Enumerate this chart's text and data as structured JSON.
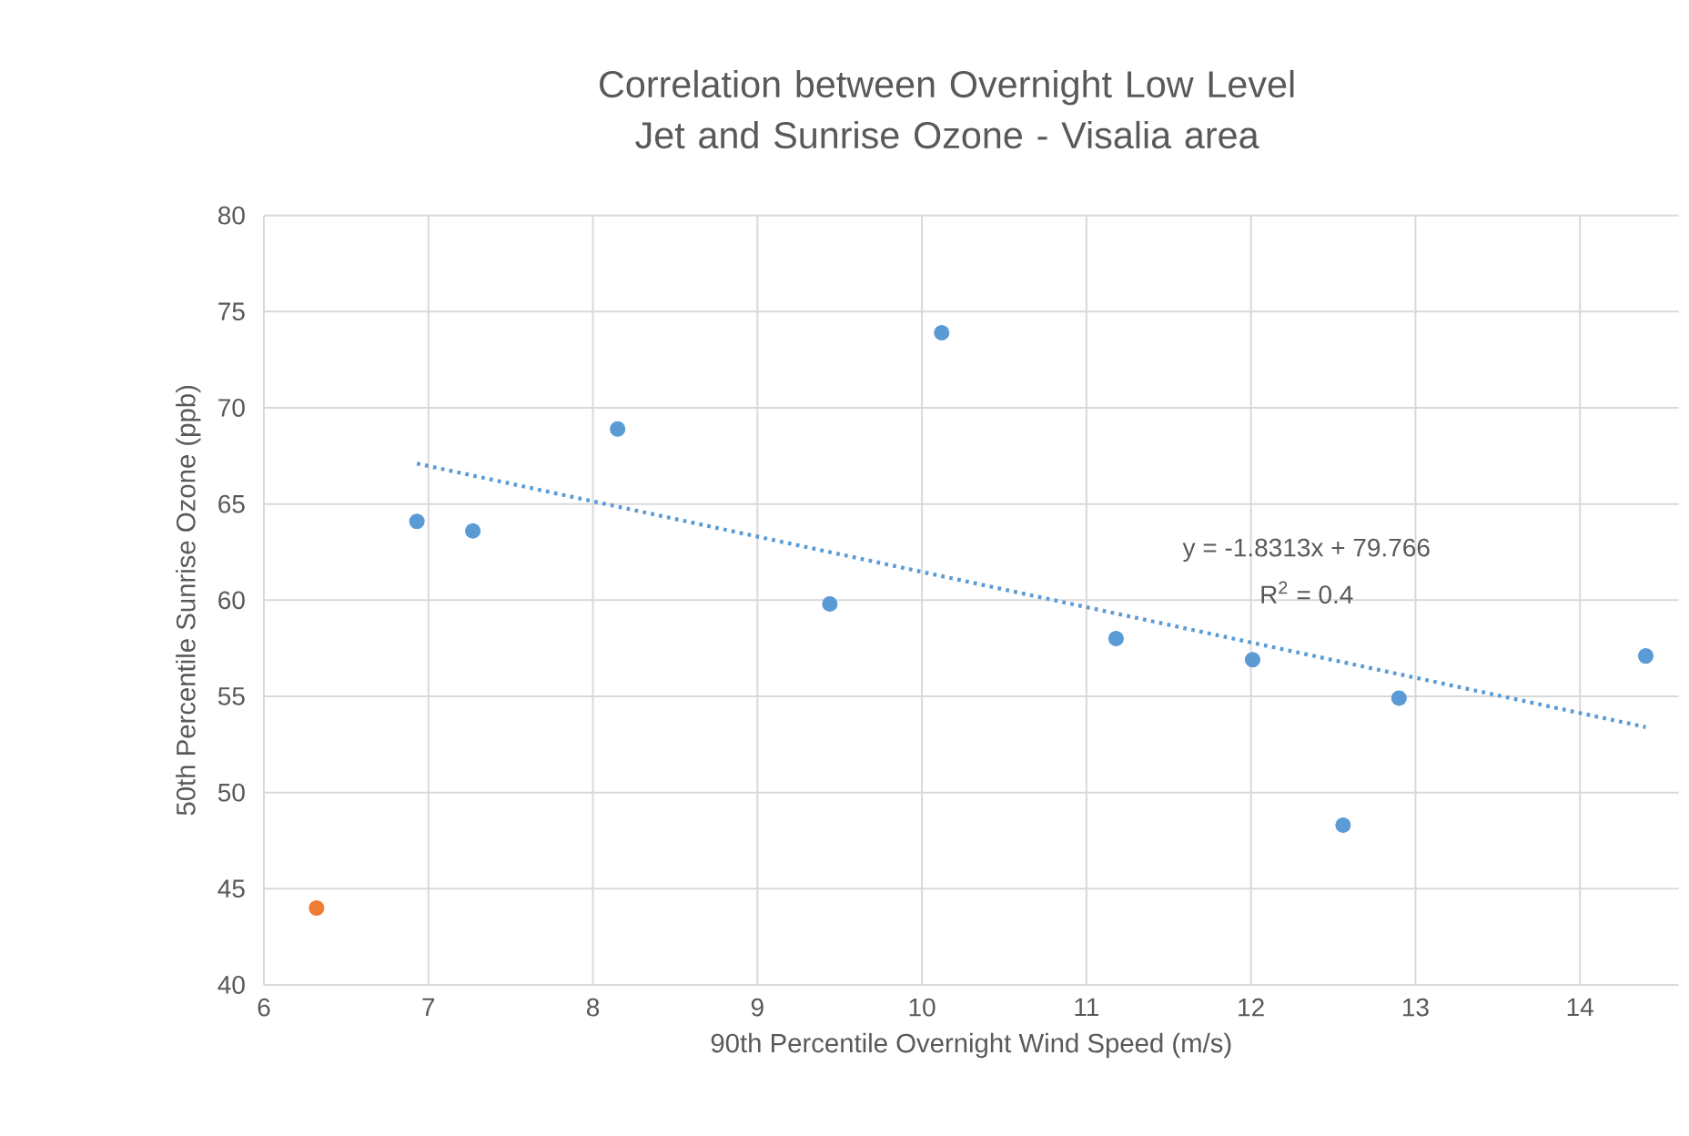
{
  "chart_data": {
    "type": "scatter",
    "title": "Correlation between Overnight Low Level Jet and Sunrise Ozone - Visalia area",
    "xlabel": "90th Percentile Overnight Wind Speed (m/s)",
    "ylabel": "50th Percentile Sunrise Ozone (ppb)",
    "series": [
      {
        "x": [
          6.32,
          6.93,
          7.27,
          8.15,
          9.44,
          10.12,
          11.18,
          12.01,
          12.56,
          12.9,
          14.4
        ],
        "values": [
          44.0,
          64.1,
          63.6,
          68.9,
          59.8,
          73.9,
          58.0,
          56.9,
          48.3,
          54.9,
          57.1
        ],
        "colors": [
          "#ed7d31",
          "#5b9bd5",
          "#5b9bd5",
          "#5b9bd5",
          "#5b9bd5",
          "#5b9bd5",
          "#5b9bd5",
          "#5b9bd5",
          "#5b9bd5",
          "#5b9bd5",
          "#5b9bd5"
        ],
        "marker": "circle"
      },
      {
        "type": "line",
        "x": [
          6.93,
          14.4
        ],
        "values": [
          67.1,
          53.4
        ],
        "color": "#5b9bd5",
        "line_style": "dotted",
        "marker": "none"
      }
    ],
    "annotations": [
      "y = -1.8313x + 79.766",
      "R$^{2}$ = 0.4"
    ],
    "xlim": [
      6,
      14.6
    ],
    "ylim": [
      40,
      80
    ],
    "xticks": [
      6,
      7,
      8,
      9,
      10,
      11,
      12,
      13,
      14
    ],
    "yticks": [
      40,
      45,
      50,
      55,
      60,
      65,
      70,
      75,
      80
    ],
    "grid": true
  }
}
